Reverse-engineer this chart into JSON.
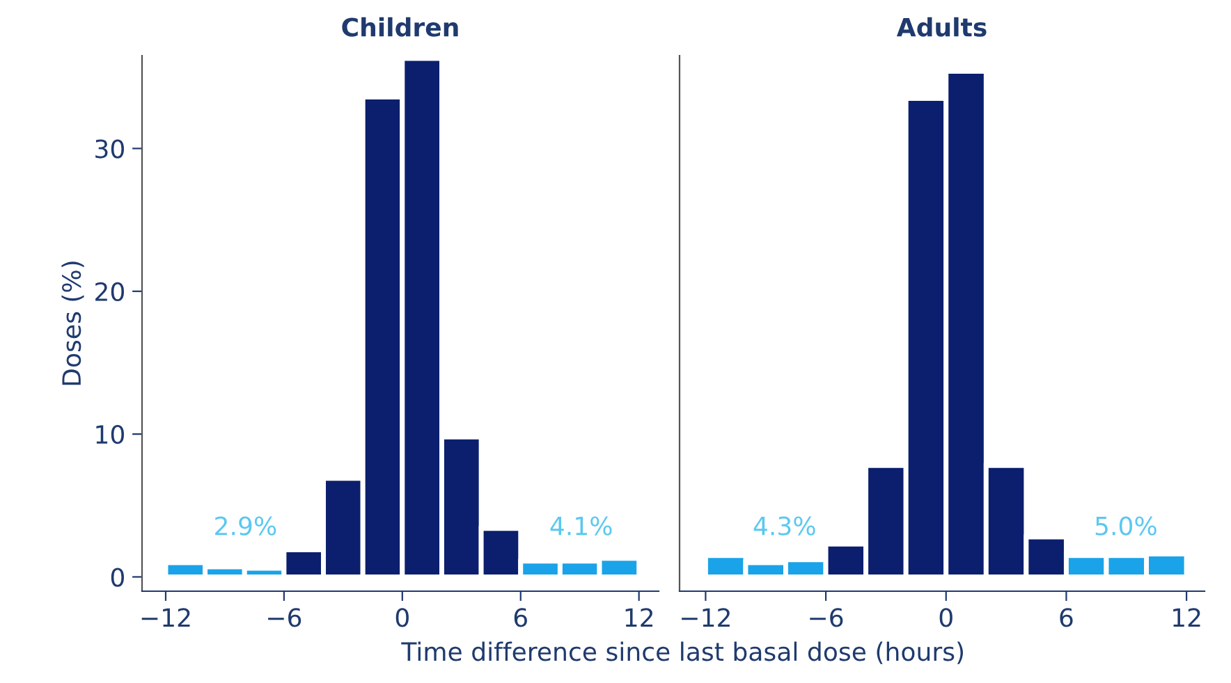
{
  "chart_data": [
    {
      "type": "histogram",
      "title": "Children",
      "ylabel": "Doses (%)",
      "xlabel": "Time difference since last basal dose (hours)",
      "bins": [
        -12,
        -10,
        -8,
        -6,
        -4,
        -2,
        0,
        2,
        4,
        6,
        8,
        10,
        12
      ],
      "values": [
        1.0,
        0.7,
        0.6,
        1.9,
        6.9,
        33.6,
        36.3,
        9.8,
        3.4,
        1.1,
        1.1,
        1.3
      ],
      "colors": [
        "#1aa3e8",
        "#1aa3e8",
        "#1aa3e8",
        "#0b1f6e",
        "#0b1f6e",
        "#0b1f6e",
        "#0b1f6e",
        "#0b1f6e",
        "#0b1f6e",
        "#1aa3e8",
        "#1aa3e8",
        "#1aa3e8"
      ],
      "annotations": [
        "2.9%",
        "4.1%"
      ],
      "xlim": [
        -13.2,
        13
      ],
      "ylim": [
        -1,
        36.5
      ],
      "xticks": [
        -12,
        -6,
        0,
        6,
        12
      ],
      "yticks": [
        0,
        10,
        20,
        30
      ]
    },
    {
      "type": "histogram",
      "title": "Adults",
      "bins": [
        -12,
        -10,
        -8,
        -6,
        -4,
        -2,
        0,
        2,
        4,
        6,
        8,
        10,
        12
      ],
      "values": [
        1.5,
        1.0,
        1.2,
        2.3,
        7.8,
        33.5,
        35.4,
        7.8,
        2.8,
        1.5,
        1.5,
        1.6
      ],
      "colors": [
        "#1aa3e8",
        "#1aa3e8",
        "#1aa3e8",
        "#0b1f6e",
        "#0b1f6e",
        "#0b1f6e",
        "#0b1f6e",
        "#0b1f6e",
        "#0b1f6e",
        "#1aa3e8",
        "#1aa3e8",
        "#1aa3e8"
      ],
      "annotations": [
        "4.3%",
        "5.0%"
      ],
      "xlim": [
        -13.3,
        12.9
      ],
      "ylim": [
        -1,
        36.5
      ],
      "xticks": [
        -12,
        -6,
        0,
        6,
        12
      ],
      "yticks": [
        0,
        10,
        20,
        30
      ],
      "tick_labels": "x"
    }
  ]
}
